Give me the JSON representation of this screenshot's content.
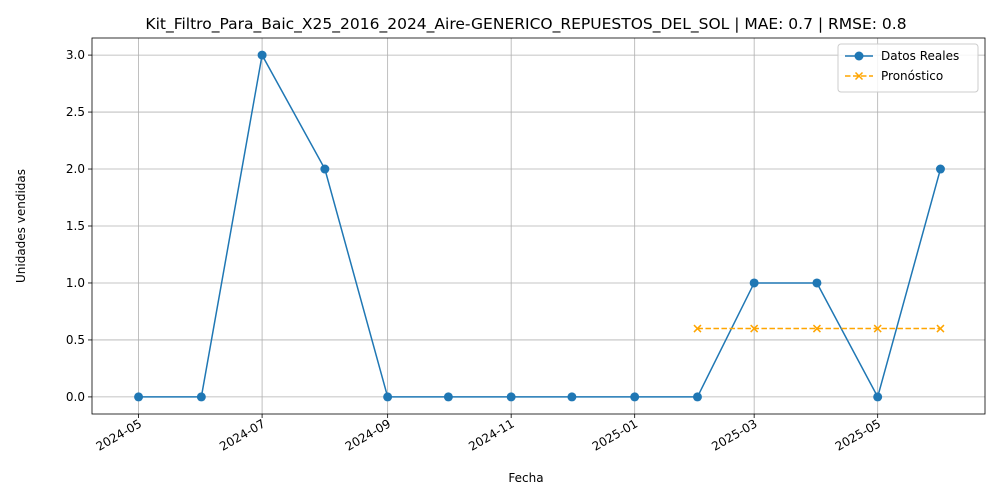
{
  "chart_data": {
    "type": "line",
    "title": "Kit_Filtro_Para_Baic_X25_2016_2024_Aire-GENERICO_REPUESTOS_DEL_SOL | MAE: 0.7 | RMSE: 0.8",
    "xlabel": "Fecha",
    "ylabel": "Unidades vendidas",
    "ylim": [
      -0.15,
      3.15
    ],
    "xlim": [
      "2024-04-08",
      "2025-06-23"
    ],
    "grid": true,
    "legend_position": "top-right",
    "x_ticks": [
      "2024-05",
      "2024-07",
      "2024-09",
      "2024-11",
      "2025-01",
      "2025-03",
      "2025-05"
    ],
    "y_ticks": [
      "0.0",
      "0.5",
      "1.0",
      "1.5",
      "2.0",
      "2.5",
      "3.0"
    ],
    "series": [
      {
        "name": "Datos Reales",
        "color": "#1f77b4",
        "marker": "circle",
        "linestyle": "solid",
        "x": [
          "2024-05-01",
          "2024-06-01",
          "2024-07-01",
          "2024-08-01",
          "2024-09-01",
          "2024-10-01",
          "2024-11-01",
          "2024-12-01",
          "2025-01-01",
          "2025-02-01",
          "2025-03-01",
          "2025-04-01",
          "2025-05-01",
          "2025-06-01"
        ],
        "values": [
          0,
          0,
          3,
          2,
          0,
          0,
          0,
          0,
          0,
          0,
          1,
          1,
          0,
          2
        ]
      },
      {
        "name": "Pronóstico",
        "color": "#ffa500",
        "marker": "x",
        "linestyle": "dashed",
        "x": [
          "2025-02-01",
          "2025-03-01",
          "2025-04-01",
          "2025-05-01",
          "2025-06-01"
        ],
        "values": [
          0.6,
          0.6,
          0.6,
          0.6,
          0.6
        ]
      }
    ]
  }
}
